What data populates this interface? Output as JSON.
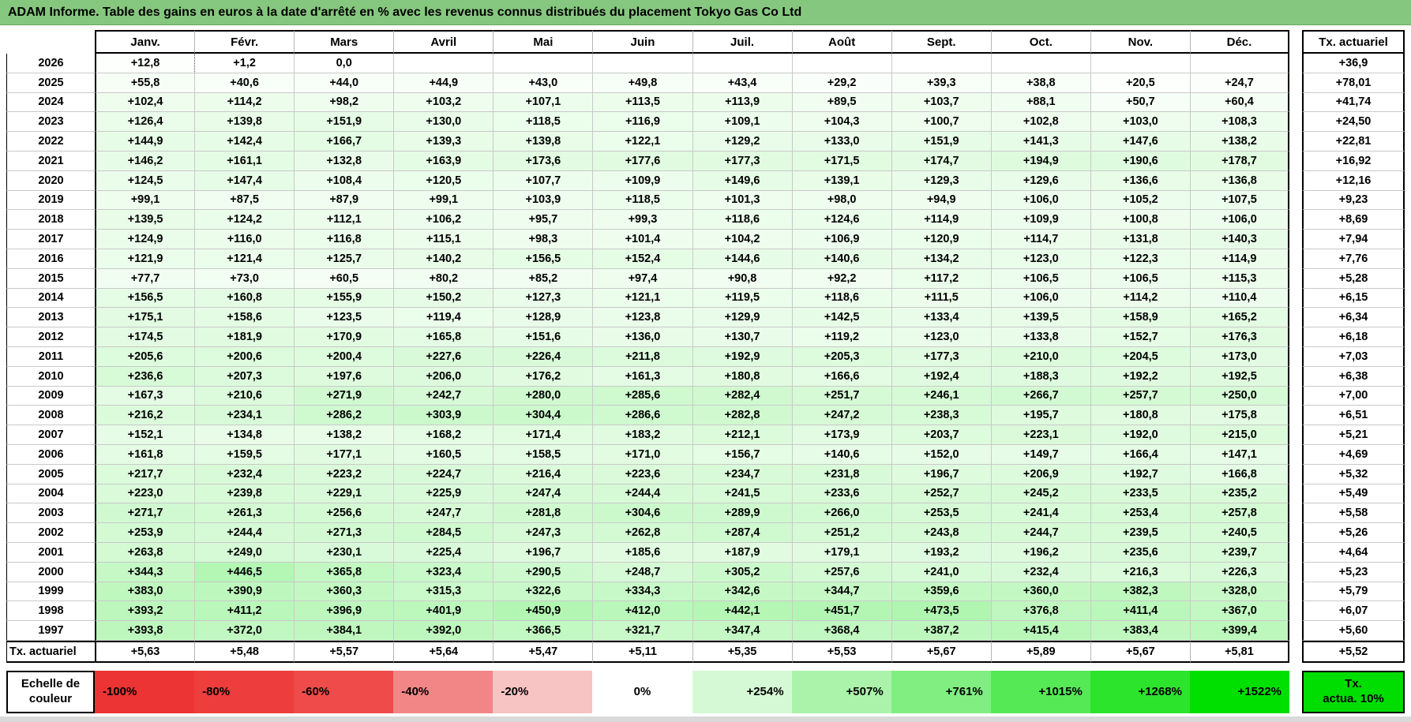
{
  "title": "ADAM Informe. Table des gains en euros à la date d'arrêté en % avec les revenus connus distribués du placement Tokyo Gas Co Ltd",
  "colors": {
    "title_bg": "#86c77f",
    "shade_green": "#00e000",
    "shade_max": 1522,
    "grid_line": "#c9c9c9"
  },
  "table": {
    "months": [
      "Janv.",
      "Févr.",
      "Mars",
      "Avril",
      "Mai",
      "Juin",
      "Juil.",
      "Août",
      "Sept.",
      "Oct.",
      "Nov.",
      "Déc."
    ],
    "right_header": "Tx. actuariel",
    "footer_label": "Tx. actuariel",
    "page_break": {
      "year": "2026",
      "col": 1
    },
    "rows": [
      {
        "year": "2026",
        "values": [
          "+12,8",
          "+1,2",
          "0,0",
          "",
          "",
          "",
          "",
          "",
          "",
          "",
          "",
          ""
        ],
        "tx": "+36,9"
      },
      {
        "year": "2025",
        "values": [
          "+55,8",
          "+40,6",
          "+44,0",
          "+44,9",
          "+43,0",
          "+49,8",
          "+43,4",
          "+29,2",
          "+39,3",
          "+38,8",
          "+20,5",
          "+24,7"
        ],
        "tx": "+78,01"
      },
      {
        "year": "2024",
        "values": [
          "+102,4",
          "+114,2",
          "+98,2",
          "+103,2",
          "+107,1",
          "+113,5",
          "+113,9",
          "+89,5",
          "+103,7",
          "+88,1",
          "+50,7",
          "+60,4"
        ],
        "tx": "+41,74"
      },
      {
        "year": "2023",
        "values": [
          "+126,4",
          "+139,8",
          "+151,9",
          "+130,0",
          "+118,5",
          "+116,9",
          "+109,1",
          "+104,3",
          "+100,7",
          "+102,8",
          "+103,0",
          "+108,3"
        ],
        "tx": "+24,50"
      },
      {
        "year": "2022",
        "values": [
          "+144,9",
          "+142,4",
          "+166,7",
          "+139,3",
          "+139,8",
          "+122,1",
          "+129,2",
          "+133,0",
          "+151,9",
          "+141,3",
          "+147,6",
          "+138,2"
        ],
        "tx": "+22,81"
      },
      {
        "year": "2021",
        "values": [
          "+146,2",
          "+161,1",
          "+132,8",
          "+163,9",
          "+173,6",
          "+177,6",
          "+177,3",
          "+171,5",
          "+174,7",
          "+194,9",
          "+190,6",
          "+178,7"
        ],
        "tx": "+16,92"
      },
      {
        "year": "2020",
        "values": [
          "+124,5",
          "+147,4",
          "+108,4",
          "+120,5",
          "+107,7",
          "+109,9",
          "+149,6",
          "+139,1",
          "+129,3",
          "+129,6",
          "+136,6",
          "+136,8"
        ],
        "tx": "+12,16"
      },
      {
        "year": "2019",
        "values": [
          "+99,1",
          "+87,5",
          "+87,9",
          "+99,1",
          "+103,9",
          "+118,5",
          "+101,3",
          "+98,0",
          "+94,9",
          "+106,0",
          "+105,2",
          "+107,5"
        ],
        "tx": "+9,23"
      },
      {
        "year": "2018",
        "values": [
          "+139,5",
          "+124,2",
          "+112,1",
          "+106,2",
          "+95,7",
          "+99,3",
          "+118,6",
          "+124,6",
          "+114,9",
          "+109,9",
          "+100,8",
          "+106,0"
        ],
        "tx": "+8,69"
      },
      {
        "year": "2017",
        "values": [
          "+124,9",
          "+116,0",
          "+116,8",
          "+115,1",
          "+98,3",
          "+101,4",
          "+104,2",
          "+106,9",
          "+120,9",
          "+114,7",
          "+131,8",
          "+140,3"
        ],
        "tx": "+7,94"
      },
      {
        "year": "2016",
        "values": [
          "+121,9",
          "+121,4",
          "+125,7",
          "+140,2",
          "+156,5",
          "+152,4",
          "+144,6",
          "+140,6",
          "+134,2",
          "+123,0",
          "+122,3",
          "+114,9"
        ],
        "tx": "+7,76"
      },
      {
        "year": "2015",
        "values": [
          "+77,7",
          "+73,0",
          "+60,5",
          "+80,2",
          "+85,2",
          "+97,4",
          "+90,8",
          "+92,2",
          "+117,2",
          "+106,5",
          "+106,5",
          "+115,3"
        ],
        "tx": "+5,28"
      },
      {
        "year": "2014",
        "values": [
          "+156,5",
          "+160,8",
          "+155,9",
          "+150,2",
          "+127,3",
          "+121,1",
          "+119,5",
          "+118,6",
          "+111,5",
          "+106,0",
          "+114,2",
          "+110,4"
        ],
        "tx": "+6,15"
      },
      {
        "year": "2013",
        "values": [
          "+175,1",
          "+158,6",
          "+123,5",
          "+119,4",
          "+128,9",
          "+123,8",
          "+129,9",
          "+142,5",
          "+133,4",
          "+139,5",
          "+158,9",
          "+165,2"
        ],
        "tx": "+6,34"
      },
      {
        "year": "2012",
        "values": [
          "+174,5",
          "+181,9",
          "+170,9",
          "+165,8",
          "+151,6",
          "+136,0",
          "+130,7",
          "+119,2",
          "+123,0",
          "+133,8",
          "+152,7",
          "+176,3"
        ],
        "tx": "+6,18"
      },
      {
        "year": "2011",
        "values": [
          "+205,6",
          "+200,6",
          "+200,4",
          "+227,6",
          "+226,4",
          "+211,8",
          "+192,9",
          "+205,3",
          "+177,3",
          "+210,0",
          "+204,5",
          "+173,0"
        ],
        "tx": "+7,03"
      },
      {
        "year": "2010",
        "values": [
          "+236,6",
          "+207,3",
          "+197,6",
          "+206,0",
          "+176,2",
          "+161,3",
          "+180,8",
          "+166,6",
          "+192,4",
          "+188,3",
          "+192,2",
          "+192,5"
        ],
        "tx": "+6,38"
      },
      {
        "year": "2009",
        "values": [
          "+167,3",
          "+210,6",
          "+271,9",
          "+242,7",
          "+280,0",
          "+285,6",
          "+282,4",
          "+251,7",
          "+246,1",
          "+266,7",
          "+257,7",
          "+250,0"
        ],
        "tx": "+7,00"
      },
      {
        "year": "2008",
        "values": [
          "+216,2",
          "+234,1",
          "+286,2",
          "+303,9",
          "+304,4",
          "+286,6",
          "+282,8",
          "+247,2",
          "+238,3",
          "+195,7",
          "+180,8",
          "+175,8"
        ],
        "tx": "+6,51"
      },
      {
        "year": "2007",
        "values": [
          "+152,1",
          "+134,8",
          "+138,2",
          "+168,2",
          "+171,4",
          "+183,2",
          "+212,1",
          "+173,9",
          "+203,7",
          "+223,1",
          "+192,0",
          "+215,0"
        ],
        "tx": "+5,21"
      },
      {
        "year": "2006",
        "values": [
          "+161,8",
          "+159,5",
          "+177,1",
          "+160,5",
          "+158,5",
          "+171,0",
          "+156,7",
          "+140,6",
          "+152,0",
          "+149,7",
          "+166,4",
          "+147,1"
        ],
        "tx": "+4,69"
      },
      {
        "year": "2005",
        "values": [
          "+217,7",
          "+232,4",
          "+223,2",
          "+224,7",
          "+216,4",
          "+223,6",
          "+234,7",
          "+231,8",
          "+196,7",
          "+206,9",
          "+192,7",
          "+166,8"
        ],
        "tx": "+5,32"
      },
      {
        "year": "2004",
        "values": [
          "+223,0",
          "+239,8",
          "+229,1",
          "+225,9",
          "+247,4",
          "+244,4",
          "+241,5",
          "+233,6",
          "+252,7",
          "+245,2",
          "+233,5",
          "+235,2"
        ],
        "tx": "+5,49"
      },
      {
        "year": "2003",
        "values": [
          "+271,7",
          "+261,3",
          "+256,6",
          "+247,7",
          "+281,8",
          "+304,6",
          "+289,9",
          "+266,0",
          "+253,5",
          "+241,4",
          "+253,4",
          "+257,8"
        ],
        "tx": "+5,58"
      },
      {
        "year": "2002",
        "values": [
          "+253,9",
          "+244,4",
          "+271,3",
          "+284,5",
          "+247,3",
          "+262,8",
          "+287,4",
          "+251,2",
          "+243,8",
          "+244,7",
          "+239,5",
          "+240,5"
        ],
        "tx": "+5,26"
      },
      {
        "year": "2001",
        "values": [
          "+263,8",
          "+249,0",
          "+230,1",
          "+225,4",
          "+196,7",
          "+185,6",
          "+187,9",
          "+179,1",
          "+193,2",
          "+196,2",
          "+235,6",
          "+239,7"
        ],
        "tx": "+4,64"
      },
      {
        "year": "2000",
        "values": [
          "+344,3",
          "+446,5",
          "+365,8",
          "+323,4",
          "+290,5",
          "+248,7",
          "+305,2",
          "+257,6",
          "+241,0",
          "+232,4",
          "+216,3",
          "+226,3"
        ],
        "tx": "+5,23"
      },
      {
        "year": "1999",
        "values": [
          "+383,0",
          "+390,9",
          "+360,3",
          "+315,3",
          "+322,6",
          "+334,3",
          "+342,6",
          "+344,7",
          "+359,6",
          "+360,0",
          "+382,3",
          "+328,0"
        ],
        "tx": "+5,79"
      },
      {
        "year": "1998",
        "values": [
          "+393,2",
          "+411,2",
          "+396,9",
          "+401,9",
          "+450,9",
          "+412,0",
          "+442,1",
          "+451,7",
          "+473,5",
          "+376,8",
          "+411,4",
          "+367,0"
        ],
        "tx": "+6,07"
      },
      {
        "year": "1997",
        "values": [
          "+393,8",
          "+372,0",
          "+384,1",
          "+392,0",
          "+366,5",
          "+321,7",
          "+347,4",
          "+368,4",
          "+387,2",
          "+415,4",
          "+383,4",
          "+399,4"
        ],
        "tx": "+5,60"
      }
    ],
    "footer_values": [
      "+5,63",
      "+5,48",
      "+5,57",
      "+5,64",
      "+5,47",
      "+5,11",
      "+5,35",
      "+5,53",
      "+5,67",
      "+5,89",
      "+5,67",
      "+5,81"
    ],
    "footer_tx": "+5,52"
  },
  "scale": {
    "label_line1": "Echelle de",
    "label_line2": "couleur",
    "stops": [
      {
        "label": "-100%",
        "color": "#ed3434",
        "align": "left"
      },
      {
        "label": "-80%",
        "color": "#ee3d3d",
        "align": "left"
      },
      {
        "label": "-60%",
        "color": "#ef4b4b",
        "align": "left"
      },
      {
        "label": "-40%",
        "color": "#f28686",
        "align": "left"
      },
      {
        "label": "-20%",
        "color": "#f8c3c3",
        "align": "left"
      },
      {
        "label": "0%",
        "color": "#ffffff",
        "align": "center"
      },
      {
        "label": "+254%",
        "color": "#d5f8d5",
        "align": "right"
      },
      {
        "label": "+507%",
        "color": "#abf3ab",
        "align": "right"
      },
      {
        "label": "+761%",
        "color": "#81ee81",
        "align": "right"
      },
      {
        "label": "+1015%",
        "color": "#56e956",
        "align": "right"
      },
      {
        "label": "+1268%",
        "color": "#2ce42c",
        "align": "right"
      },
      {
        "label": "+1522%",
        "color": "#00e000",
        "align": "right"
      }
    ],
    "tx_box": {
      "line1": "Tx.",
      "line2": "actua. 10%",
      "color": "#00dd00"
    }
  }
}
